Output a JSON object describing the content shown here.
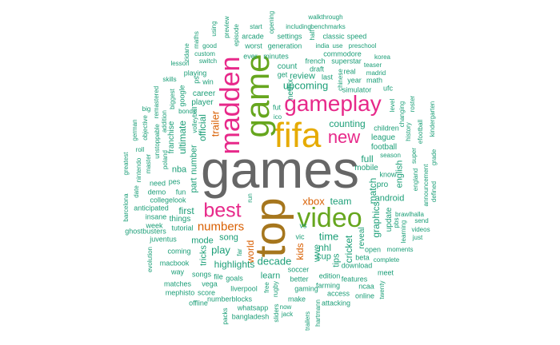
{
  "palette": {
    "teal": "#1b9e77",
    "orange": "#d95f02",
    "pink": "#e7298a",
    "green": "#66a61e",
    "gold": "#e6ab02",
    "brown": "#a6761d",
    "grey": "#666666"
  },
  "words": [
    {
      "text": "games",
      "color": "#666666"
    },
    {
      "text": "top",
      "color": "#a6761d"
    },
    {
      "text": "fifa",
      "color": "#e6ab02"
    },
    {
      "text": "game",
      "color": "#66a61e"
    },
    {
      "text": "madden",
      "color": "#e7298a"
    },
    {
      "text": "gameplay",
      "color": "#e7298a"
    },
    {
      "text": "video",
      "color": "#66a61e"
    },
    {
      "text": "best",
      "color": "#e7298a"
    },
    {
      "text": "new",
      "color": "#e7298a"
    },
    {
      "text": "numbers",
      "color": "#d95f02"
    },
    {
      "text": "xbox",
      "color": "#d95f02"
    },
    {
      "text": "trailer",
      "color": "#d95f02"
    },
    {
      "text": "world",
      "color": "#d95f02"
    },
    {
      "text": "kids",
      "color": "#d95f02"
    },
    {
      "text": "upcoming",
      "color": "#1b9e77"
    },
    {
      "text": "review",
      "color": "#1b9e77"
    },
    {
      "text": "counting",
      "color": "#1b9e77"
    },
    {
      "text": "ultimate",
      "color": "#1b9e77"
    },
    {
      "text": "official",
      "color": "#1b9e77"
    },
    {
      "text": "part",
      "color": "#1b9e77"
    },
    {
      "text": "number",
      "color": "#1b9e77"
    },
    {
      "text": "first",
      "color": "#1b9e77"
    },
    {
      "text": "song",
      "color": "#1b9e77"
    },
    {
      "text": "play",
      "color": "#1b9e77"
    },
    {
      "text": "highlights",
      "color": "#1b9e77"
    },
    {
      "text": "decade",
      "color": "#1b9e77"
    },
    {
      "text": "time",
      "color": "#1b9e77"
    },
    {
      "text": "team",
      "color": "#1b9e77"
    },
    {
      "text": "full",
      "color": "#1b9e77"
    },
    {
      "text": "match",
      "color": "#1b9e77"
    },
    {
      "text": "graphics",
      "color": "#1b9e77"
    },
    {
      "text": "cricket",
      "color": "#1b9e77"
    },
    {
      "text": "wwe",
      "color": "#1b9e77"
    },
    {
      "text": "nhl",
      "color": "#1b9e77"
    },
    {
      "text": "cup",
      "color": "#1b9e77"
    },
    {
      "text": "tips",
      "color": "#1b9e77"
    },
    {
      "text": "mode",
      "color": "#1b9e77"
    },
    {
      "text": "tricks",
      "color": "#1b9e77"
    },
    {
      "text": "nba",
      "color": "#1b9e77"
    },
    {
      "text": "learn",
      "color": "#1b9e77"
    },
    {
      "text": "mobile",
      "color": "#1b9e77"
    },
    {
      "text": "english",
      "color": "#1b9e77"
    },
    {
      "text": "android",
      "color": "#1b9e77"
    },
    {
      "text": "football",
      "color": "#1b9e77"
    },
    {
      "text": "league",
      "color": "#1b9e77"
    },
    {
      "text": "children",
      "color": "#1b9e77"
    },
    {
      "text": "reveal",
      "color": "#1b9e77"
    },
    {
      "text": "pro",
      "color": "#1b9e77"
    },
    {
      "text": "update",
      "color": "#1b9e77"
    },
    {
      "text": "franchise",
      "color": "#1b9e77"
    },
    {
      "text": "career",
      "color": "#1b9e77"
    },
    {
      "text": "player",
      "color": "#1b9e77"
    },
    {
      "text": "netflix",
      "color": "#1b9e77"
    },
    {
      "text": "walkthrough",
      "color": "#1b9e77"
    },
    {
      "text": "benchmarks",
      "color": "#1b9e77"
    },
    {
      "text": "including",
      "color": "#1b9e77"
    },
    {
      "text": "start",
      "color": "#1b9e77"
    },
    {
      "text": "opening",
      "color": "#1b9e77"
    },
    {
      "text": "half",
      "color": "#1b9e77"
    },
    {
      "text": "arcade",
      "color": "#1b9e77"
    },
    {
      "text": "settings",
      "color": "#1b9e77"
    },
    {
      "text": "classic",
      "color": "#1b9e77"
    },
    {
      "text": "speed",
      "color": "#1b9e77"
    },
    {
      "text": "worst",
      "color": "#1b9e77"
    },
    {
      "text": "generation",
      "color": "#1b9e77"
    },
    {
      "text": "india",
      "color": "#1b9e77"
    },
    {
      "text": "use",
      "color": "#1b9e77"
    },
    {
      "text": "preschool",
      "color": "#1b9e77"
    },
    {
      "text": "ever",
      "color": "#1b9e77"
    },
    {
      "text": "minutes",
      "color": "#1b9e77"
    },
    {
      "text": "commodore",
      "color": "#1b9e77"
    },
    {
      "text": "french",
      "color": "#1b9e77"
    },
    {
      "text": "superstar",
      "color": "#1b9e77"
    },
    {
      "text": "teaser",
      "color": "#1b9e77"
    },
    {
      "text": "korea",
      "color": "#1b9e77"
    },
    {
      "text": "count",
      "color": "#1b9e77"
    },
    {
      "text": "draft",
      "color": "#1b9e77"
    },
    {
      "text": "real",
      "color": "#1b9e77"
    },
    {
      "text": "madrid",
      "color": "#1b9e77"
    },
    {
      "text": "get",
      "color": "#1b9e77"
    },
    {
      "text": "last",
      "color": "#1b9e77"
    },
    {
      "text": "year",
      "color": "#1b9e77"
    },
    {
      "text": "math",
      "color": "#1b9e77"
    },
    {
      "text": "simulator",
      "color": "#1b9e77"
    },
    {
      "text": "ufc",
      "color": "#1b9e77"
    },
    {
      "text": "chinese",
      "color": "#1b9e77"
    },
    {
      "text": "fut",
      "color": "#1b9e77"
    },
    {
      "text": "ico",
      "color": "#1b9e77"
    },
    {
      "text": "playing",
      "color": "#1b9e77"
    },
    {
      "text": "skills",
      "color": "#1b9e77"
    },
    {
      "text": "ps",
      "color": "#1b9e77"
    },
    {
      "text": "win",
      "color": "#1b9e77"
    },
    {
      "text": "google",
      "color": "#1b9e77"
    },
    {
      "text": "biggest",
      "color": "#1b9e77"
    },
    {
      "text": "bonds",
      "color": "#1b9e77"
    },
    {
      "text": "volleyball",
      "color": "#1b9e77"
    },
    {
      "text": "addition",
      "color": "#1b9e77"
    },
    {
      "text": "remastered",
      "color": "#1b9e77"
    },
    {
      "text": "objective",
      "color": "#1b9e77"
    },
    {
      "text": "big",
      "color": "#1b9e77"
    },
    {
      "text": "german",
      "color": "#1b9e77"
    },
    {
      "text": "unstoppable",
      "color": "#1b9e77"
    },
    {
      "text": "roll",
      "color": "#1b9e77"
    },
    {
      "text": "poland",
      "color": "#1b9e77"
    },
    {
      "text": "master",
      "color": "#1b9e77"
    },
    {
      "text": "nintendo",
      "color": "#1b9e77"
    },
    {
      "text": "greatest",
      "color": "#1b9e77"
    },
    {
      "text": "date",
      "color": "#1b9e77"
    },
    {
      "text": "barcelona",
      "color": "#1b9e77"
    },
    {
      "text": "need",
      "color": "#1b9e77"
    },
    {
      "text": "pes",
      "color": "#1b9e77"
    },
    {
      "text": "demo",
      "color": "#1b9e77"
    },
    {
      "text": "fun",
      "color": "#1b9e77"
    },
    {
      "text": "collegelook",
      "color": "#1b9e77"
    },
    {
      "text": "anticipated",
      "color": "#1b9e77"
    },
    {
      "text": "insane",
      "color": "#1b9e77"
    },
    {
      "text": "things",
      "color": "#1b9e77"
    },
    {
      "text": "week",
      "color": "#1b9e77"
    },
    {
      "text": "tutorial",
      "color": "#1b9e77"
    },
    {
      "text": "ghostbusters",
      "color": "#1b9e77"
    },
    {
      "text": "juventus",
      "color": "#1b9e77"
    },
    {
      "text": "coming",
      "color": "#1b9e77"
    },
    {
      "text": "macbook",
      "color": "#1b9e77"
    },
    {
      "text": "way",
      "color": "#1b9e77"
    },
    {
      "text": "evolution",
      "color": "#1b9e77"
    },
    {
      "text": "songs",
      "color": "#1b9e77"
    },
    {
      "text": "file",
      "color": "#1b9e77"
    },
    {
      "text": "goals",
      "color": "#1b9e77"
    },
    {
      "text": "matches",
      "color": "#1b9e77"
    },
    {
      "text": "vega",
      "color": "#1b9e77"
    },
    {
      "text": "mephisto",
      "color": "#1b9e77"
    },
    {
      "text": "score",
      "color": "#1b9e77"
    },
    {
      "text": "offline",
      "color": "#1b9e77"
    },
    {
      "text": "numberblocks",
      "color": "#1b9e77"
    },
    {
      "text": "liverpool",
      "color": "#1b9e77"
    },
    {
      "text": "whatsapp",
      "color": "#1b9e77"
    },
    {
      "text": "bangladesh",
      "color": "#1b9e77"
    },
    {
      "text": "packs",
      "color": "#1b9e77"
    },
    {
      "text": "now",
      "color": "#1b9e77"
    },
    {
      "text": "jack",
      "color": "#1b9e77"
    },
    {
      "text": "make",
      "color": "#1b9e77"
    },
    {
      "text": "soccer",
      "color": "#1b9e77"
    },
    {
      "text": "better",
      "color": "#1b9e77"
    },
    {
      "text": "gaming",
      "color": "#1b9e77"
    },
    {
      "text": "edition",
      "color": "#1b9e77"
    },
    {
      "text": "features",
      "color": "#1b9e77"
    },
    {
      "text": "farming",
      "color": "#1b9e77"
    },
    {
      "text": "access",
      "color": "#1b9e77"
    },
    {
      "text": "attacking",
      "color": "#1b9e77"
    },
    {
      "text": "online",
      "color": "#1b9e77"
    },
    {
      "text": "download",
      "color": "#1b9e77"
    },
    {
      "text": "ncaa",
      "color": "#1b9e77"
    },
    {
      "text": "meet",
      "color": "#1b9e77"
    },
    {
      "text": "twenty",
      "color": "#1b9e77"
    },
    {
      "text": "beta",
      "color": "#1b9e77"
    },
    {
      "text": "complete",
      "color": "#1b9e77"
    },
    {
      "text": "open",
      "color": "#1b9e77"
    },
    {
      "text": "moments",
      "color": "#1b9e77"
    },
    {
      "text": "videos",
      "color": "#1b9e77"
    },
    {
      "text": "just",
      "color": "#1b9e77"
    },
    {
      "text": "send",
      "color": "#1b9e77"
    },
    {
      "text": "learning",
      "color": "#1b9e77"
    },
    {
      "text": "brawlhalla",
      "color": "#1b9e77"
    },
    {
      "text": "pbs",
      "color": "#1b9e77"
    },
    {
      "text": "announcement",
      "color": "#1b9e77"
    },
    {
      "text": "england",
      "color": "#1b9e77"
    },
    {
      "text": "defined",
      "color": "#1b9e77"
    },
    {
      "text": "grade",
      "color": "#1b9e77"
    },
    {
      "text": "super",
      "color": "#1b9e77"
    },
    {
      "text": "kindergarten",
      "color": "#1b9e77"
    },
    {
      "text": "roster",
      "color": "#1b9e77"
    },
    {
      "text": "efootball",
      "color": "#1b9e77"
    },
    {
      "text": "history",
      "color": "#1b9e77"
    },
    {
      "text": "changing",
      "color": "#1b9e77"
    },
    {
      "text": "level",
      "color": "#1b9e77"
    },
    {
      "text": "season",
      "color": "#1b9e77"
    },
    {
      "text": "know",
      "color": "#1b9e77"
    },
    {
      "text": "vs",
      "color": "#1b9e77"
    },
    {
      "text": "vic",
      "color": "#1b9e77"
    },
    {
      "text": "far",
      "color": "#1b9e77"
    },
    {
      "text": "free",
      "color": "#1b9e77"
    },
    {
      "text": "rugby",
      "color": "#1b9e77"
    },
    {
      "text": "sliders",
      "color": "#1b9e77"
    },
    {
      "text": "trailers",
      "color": "#1b9e77"
    },
    {
      "text": "hartmann",
      "color": "#1b9e77"
    },
    {
      "text": "run",
      "color": "#1b9e77"
    },
    {
      "text": "lesson",
      "color": "#1b9e77"
    },
    {
      "text": "custom",
      "color": "#1b9e77"
    },
    {
      "text": "switch",
      "color": "#1b9e77"
    },
    {
      "text": "zidane",
      "color": "#1b9e77"
    },
    {
      "text": "maths",
      "color": "#1b9e77"
    },
    {
      "text": "good",
      "color": "#1b9e77"
    },
    {
      "text": "using",
      "color": "#1b9e77"
    },
    {
      "text": "preview",
      "color": "#1b9e77"
    },
    {
      "text": "episode",
      "color": "#1b9e77"
    }
  ]
}
